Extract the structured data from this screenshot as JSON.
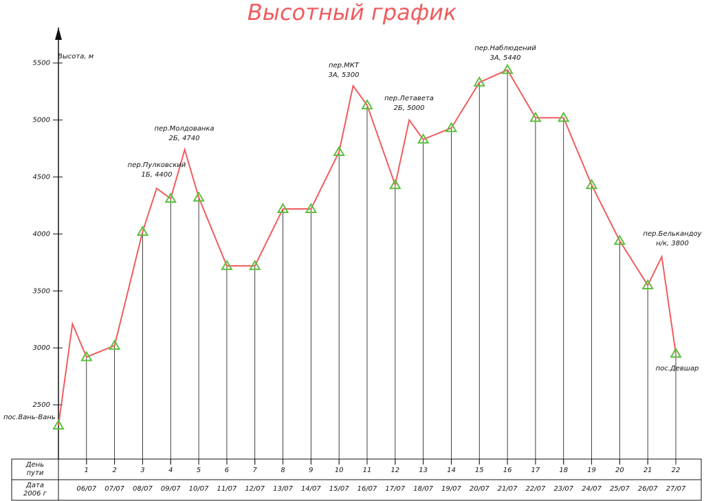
{
  "chart_data": {
    "type": "line",
    "title": "Высотный график",
    "y_label": "Высота, м",
    "ylim": [
      2000,
      5800
    ],
    "yticks": [
      2500,
      3000,
      3500,
      4000,
      4500,
      5000,
      5500
    ],
    "xlim": [
      0,
      22
    ],
    "xticks": [
      1,
      2,
      3,
      4,
      5,
      6,
      7,
      8,
      9,
      10,
      11,
      12,
      13,
      14,
      15,
      16,
      17,
      18,
      19,
      20,
      21,
      22
    ],
    "dates": [
      "06/07",
      "07/07",
      "08/07",
      "09/07",
      "10/07",
      "11/07",
      "12/07",
      "13/07",
      "14/07",
      "15/07",
      "16/07",
      "17/07",
      "18/07",
      "19/07",
      "20/07",
      "21/07",
      "22/07",
      "23/07",
      "24/07",
      "25/07",
      "26/07",
      "27/07"
    ],
    "row_labels": [
      [
        "День",
        "пути"
      ],
      [
        "Дата",
        "2006 г"
      ]
    ],
    "route": {
      "color": "#ef5b5f",
      "x": [
        0,
        0.5,
        1,
        2,
        3,
        3.5,
        4,
        4.5,
        5,
        6,
        7,
        8,
        9,
        10,
        10.5,
        11,
        12,
        12.5,
        13,
        14,
        15,
        16,
        17,
        18,
        19,
        20,
        21,
        21.5,
        22
      ],
      "values": [
        2320,
        3210,
        2920,
        3020,
        4020,
        4400,
        4310,
        4740,
        4320,
        3720,
        3720,
        4220,
        4220,
        4720,
        5300,
        5130,
        4430,
        5000,
        4830,
        4930,
        5330,
        5440,
        5020,
        5020,
        4430,
        3940,
        3550,
        3800,
        2950
      ]
    },
    "camps": {
      "color": "#5cbf3c",
      "x": [
        0,
        1,
        2,
        3,
        4,
        5,
        6,
        7,
        8,
        9,
        10,
        11,
        12,
        13,
        14,
        15,
        16,
        17,
        18,
        19,
        20,
        21,
        22
      ],
      "values": [
        2320,
        2920,
        3020,
        4020,
        4310,
        4320,
        3720,
        3720,
        4220,
        4220,
        4720,
        5130,
        4430,
        4830,
        4930,
        5330,
        5440,
        5020,
        5020,
        4430,
        3940,
        3550,
        2950
      ]
    },
    "annotations": [
      [
        "пос.Вань-Вань"
      ],
      [
        "пер.Пулковский",
        "1Б, 4400"
      ],
      [
        "пер.Молдованка",
        "2Б, 4740"
      ],
      [
        "пер.МКТ",
        "3А, 5300"
      ],
      [
        "пер.Летавета",
        "2Б, 5000"
      ],
      [
        "пер.Наблюдений",
        "3А, 5440"
      ],
      [
        "пер.Белькандоу",
        "н/к, 3800"
      ],
      [
        "пос.Девшар"
      ]
    ]
  }
}
